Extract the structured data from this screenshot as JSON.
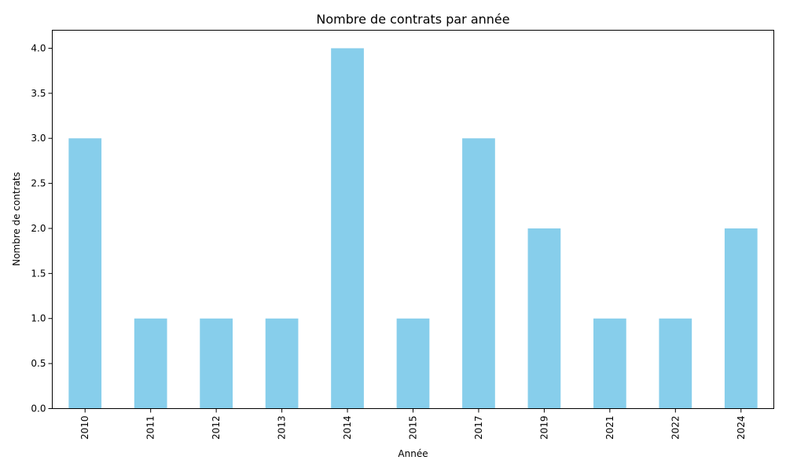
{
  "chart_data": {
    "type": "bar",
    "title": "Nombre de contrats par année",
    "xlabel": "Année",
    "ylabel": "Nombre de contrats",
    "categories": [
      "2010",
      "2011",
      "2012",
      "2013",
      "2014",
      "2015",
      "2017",
      "2019",
      "2021",
      "2022",
      "2024"
    ],
    "values": [
      3,
      1,
      1,
      1,
      4,
      1,
      3,
      2,
      1,
      1,
      2
    ],
    "ylim": [
      0,
      4.2
    ],
    "yticks": [
      "0.0",
      "0.5",
      "1.0",
      "1.5",
      "2.0",
      "2.5",
      "3.0",
      "3.5",
      "4.0"
    ],
    "grid": false,
    "legend": "none",
    "colors": {
      "bar": "#87ceeb",
      "axis": "#000000"
    }
  }
}
